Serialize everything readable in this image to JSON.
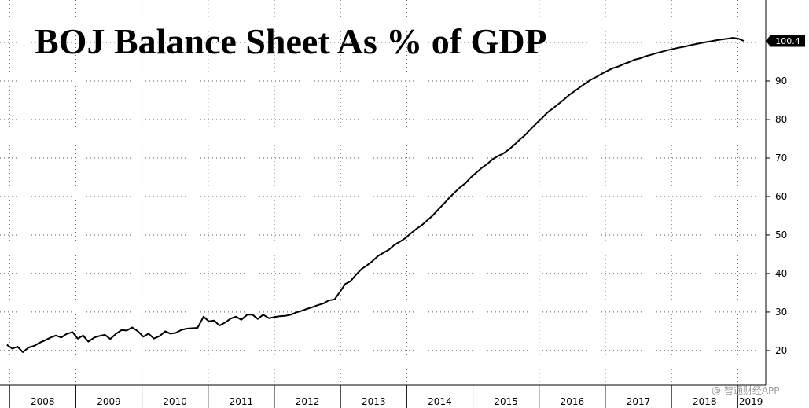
{
  "chart_data": {
    "type": "line",
    "title": "BOJ Balance Sheet As % of GDP",
    "xlabel": "",
    "ylabel": "",
    "x_ticks": [
      "2008",
      "2009",
      "2010",
      "2011",
      "2012",
      "2013",
      "2014",
      "2015",
      "2016",
      "2017",
      "2018",
      "2019"
    ],
    "y_ticks": [
      20,
      30,
      40,
      50,
      60,
      70,
      80,
      90
    ],
    "ylim": [
      11,
      110
    ],
    "xlim": [
      2007.95,
      2019.4
    ],
    "grid": true,
    "last_value_label": "100.4",
    "series": [
      {
        "name": "",
        "color": "#000000",
        "x": [
          2007.96,
          2008.04,
          2008.12,
          2008.2,
          2008.29,
          2008.37,
          2008.45,
          2008.53,
          2008.62,
          2008.7,
          2008.78,
          2008.86,
          2008.95,
          2009.03,
          2009.11,
          2009.19,
          2009.28,
          2009.36,
          2009.44,
          2009.52,
          2009.61,
          2009.69,
          2009.77,
          2009.85,
          2009.94,
          2010.02,
          2010.1,
          2010.18,
          2010.27,
          2010.35,
          2010.43,
          2010.51,
          2010.6,
          2010.68,
          2010.76,
          2010.84,
          2010.93,
          2011.01,
          2011.09,
          2011.17,
          2011.26,
          2011.34,
          2011.42,
          2011.5,
          2011.59,
          2011.67,
          2011.75,
          2011.83,
          2011.92,
          2012.0,
          2012.08,
          2012.16,
          2012.25,
          2012.33,
          2012.41,
          2012.49,
          2012.58,
          2012.66,
          2012.74,
          2012.82,
          2012.91,
          2012.99,
          2013.07,
          2013.15,
          2013.24,
          2013.32,
          2013.4,
          2013.48,
          2013.57,
          2013.65,
          2013.73,
          2013.81,
          2013.9,
          2013.98,
          2014.06,
          2014.14,
          2014.23,
          2014.31,
          2014.39,
          2014.47,
          2014.56,
          2014.64,
          2014.72,
          2014.8,
          2014.89,
          2014.97,
          2015.05,
          2015.13,
          2015.22,
          2015.3,
          2015.38,
          2015.46,
          2015.55,
          2015.63,
          2015.71,
          2015.79,
          2015.88,
          2015.96,
          2016.04,
          2016.12,
          2016.21,
          2016.29,
          2016.37,
          2016.45,
          2016.54,
          2016.62,
          2016.7,
          2016.78,
          2016.87,
          2016.95,
          2017.03,
          2017.11,
          2017.2,
          2017.28,
          2017.36,
          2017.44,
          2017.53,
          2017.61,
          2017.69,
          2017.77,
          2017.86,
          2017.94,
          2018.02,
          2018.1,
          2018.19,
          2018.27,
          2018.35,
          2018.43,
          2018.52,
          2018.6,
          2018.68,
          2018.76,
          2018.85,
          2018.93,
          2019.01,
          2019.09
        ],
        "y": [
          21.5,
          20.5,
          21.0,
          19.6,
          20.8,
          21.2,
          22.0,
          22.6,
          23.4,
          23.9,
          23.4,
          24.3,
          24.8,
          23.1,
          23.9,
          22.3,
          23.4,
          23.8,
          24.1,
          23.0,
          24.4,
          25.3,
          25.2,
          26.0,
          25.0,
          23.6,
          24.4,
          23.1,
          23.8,
          25.0,
          24.4,
          24.6,
          25.4,
          25.7,
          25.8,
          25.9,
          28.8,
          27.6,
          27.8,
          26.5,
          27.3,
          28.3,
          28.8,
          28.0,
          29.3,
          29.3,
          28.2,
          29.3,
          28.4,
          28.7,
          28.9,
          29.0,
          29.3,
          29.9,
          30.3,
          30.8,
          31.3,
          31.8,
          32.2,
          33.0,
          33.3,
          35.2,
          37.3,
          38.0,
          39.8,
          41.2,
          42.1,
          43.2,
          44.6,
          45.4,
          46.2,
          47.4,
          48.3,
          49.2,
          50.4,
          51.5,
          52.6,
          53.8,
          55.0,
          56.5,
          58.1,
          59.6,
          61.0,
          62.3,
          63.5,
          65.0,
          66.2,
          67.4,
          68.5,
          69.7,
          70.5,
          71.2,
          72.3,
          73.5,
          74.8,
          76.0,
          77.6,
          79.0,
          80.3,
          81.7,
          82.9,
          84.0,
          85.1,
          86.3,
          87.4,
          88.4,
          89.4,
          90.3,
          91.1,
          91.9,
          92.6,
          93.3,
          93.8,
          94.4,
          94.9,
          95.5,
          95.9,
          96.4,
          96.8,
          97.2,
          97.6,
          98.0,
          98.3,
          98.6,
          98.9,
          99.2,
          99.5,
          99.8,
          100.1,
          100.3,
          100.6,
          100.8,
          101.0,
          101.2,
          101.0,
          100.4
        ]
      }
    ]
  },
  "watermark": {
    "text": "@ 智通财经APP"
  }
}
